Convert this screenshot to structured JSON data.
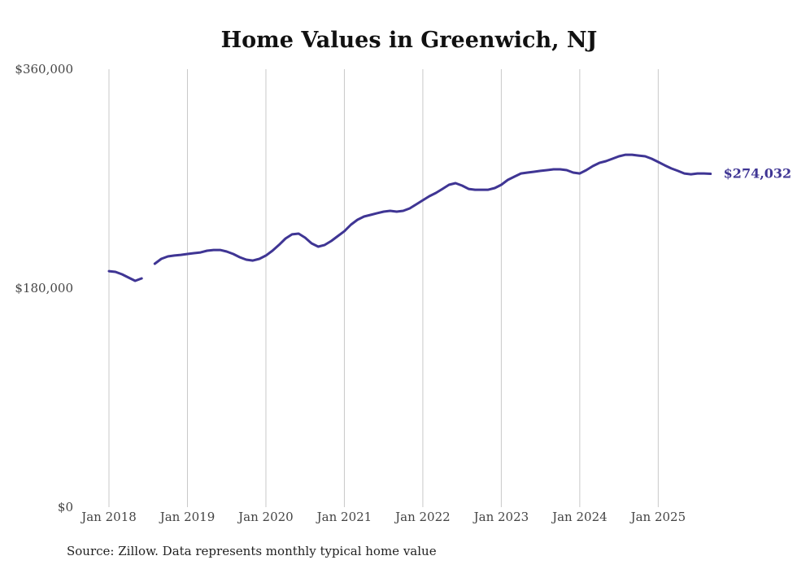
{
  "chart_data": {
    "type": "line",
    "title": "Home Values in Greenwich, NJ",
    "xlabel": "",
    "ylabel": "",
    "ylim": [
      0,
      360000
    ],
    "grid": "vertical",
    "yticks": [
      0,
      180000,
      360000
    ],
    "ytick_labels": [
      "$0",
      "$180,000",
      "$360,000"
    ],
    "xtick_labels": [
      "Jan 2018",
      "Jan 2019",
      "Jan 2020",
      "Jan 2021",
      "Jan 2022",
      "Jan 2023",
      "Jan 2024",
      "Jan 2025"
    ],
    "x_start": "Jan 2018",
    "x_unit": "month",
    "line_color": "#3f3594",
    "end_label": "$274,032",
    "series": [
      {
        "name": "Typical home value",
        "values": [
          194000,
          193400,
          191400,
          188700,
          186000,
          188000,
          null,
          200100,
          204100,
          206100,
          206800,
          207400,
          208100,
          208800,
          209400,
          210800,
          211400,
          211400,
          210100,
          208100,
          205400,
          203400,
          202700,
          204100,
          206800,
          210800,
          215500,
          220800,
          224200,
          224800,
          221500,
          216800,
          214100,
          215500,
          218800,
          222800,
          226800,
          232200,
          236200,
          238900,
          240200,
          241600,
          242900,
          243600,
          242900,
          243600,
          245600,
          248900,
          252300,
          255600,
          258300,
          261600,
          265000,
          266300,
          264300,
          261600,
          260900,
          260900,
          260900,
          262300,
          265000,
          269000,
          271700,
          274300,
          275000,
          275700,
          276400,
          277000,
          277700,
          277700,
          277000,
          275000,
          274300,
          277000,
          280400,
          283000,
          284400,
          286400,
          288400,
          289700,
          289700,
          289000,
          288400,
          286400,
          283700,
          281000,
          278400,
          276400,
          274300,
          273600,
          274300,
          274300,
          274032
        ]
      }
    ]
  },
  "source": "Source: Zillow. Data represents monthly typical home value"
}
